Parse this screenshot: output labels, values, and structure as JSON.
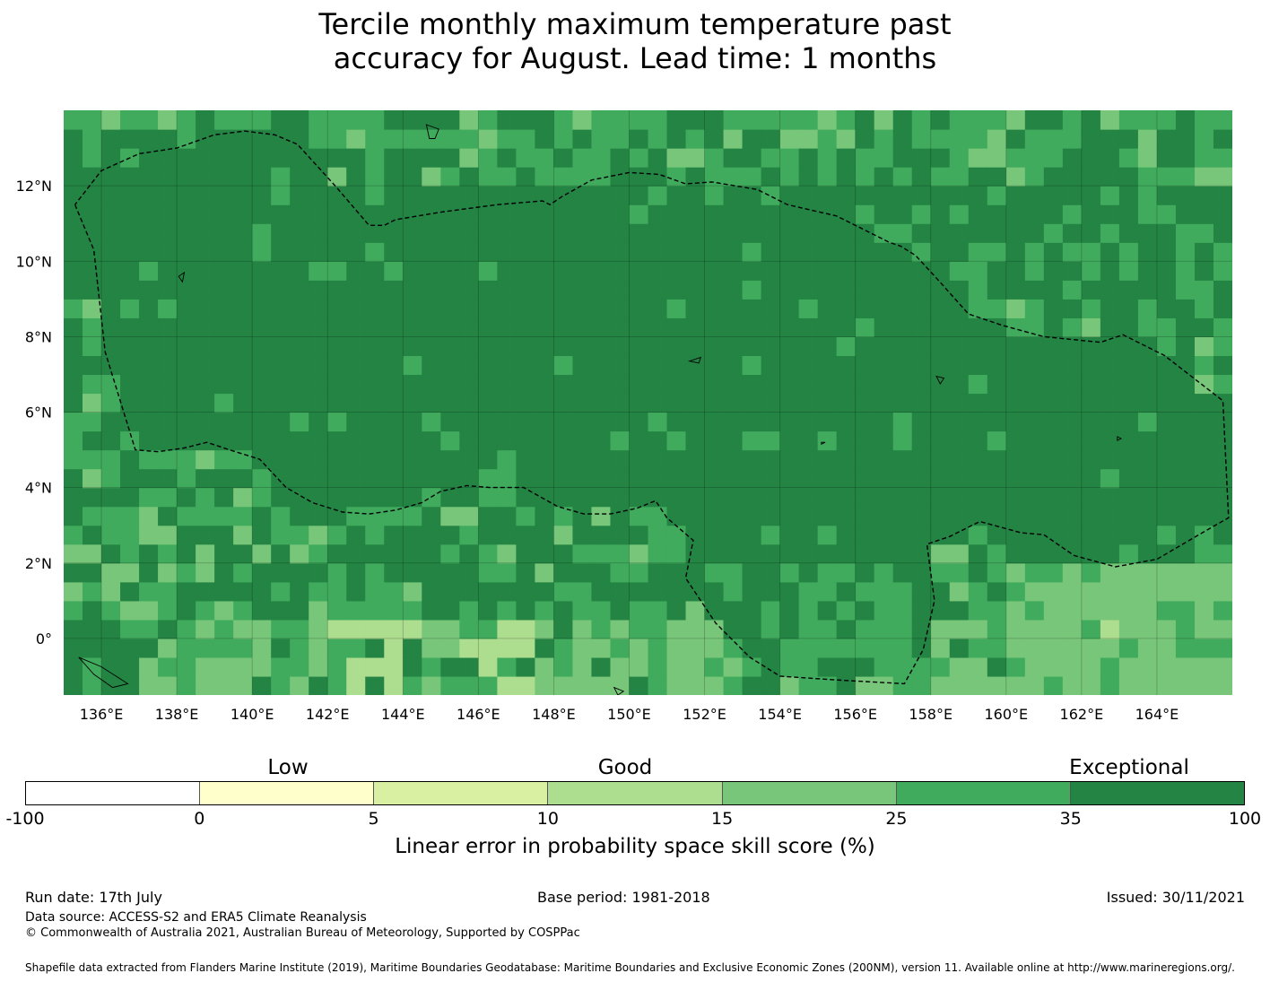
{
  "title": {
    "line1": "Tercile monthly maximum temperature past",
    "line2": "accuracy for August. Lead time: 1 months"
  },
  "map": {
    "lon_range": [
      135,
      166
    ],
    "lat_range": [
      -1.5,
      14
    ],
    "x_ticks": [
      "136°E",
      "138°E",
      "140°E",
      "142°E",
      "144°E",
      "146°E",
      "148°E",
      "150°E",
      "152°E",
      "154°E",
      "156°E",
      "158°E",
      "160°E",
      "162°E",
      "164°E"
    ],
    "y_ticks": [
      "12°N",
      "10°N",
      "8°N",
      "6°N",
      "4°N",
      "2°N",
      "0°"
    ],
    "colors": {
      "exceptional": "#238443",
      "very_good": "#41ab5d",
      "good": "#78c679",
      "fair": "#addd8e",
      "low": "#d9f0a3",
      "lowest": "#ffffcc",
      "none": "#ffffff"
    },
    "eez_boundary": [
      [
        135.3,
        11.5
      ],
      [
        135.8,
        10.3
      ],
      [
        136.1,
        7.6
      ],
      [
        136.9,
        5.0
      ],
      [
        137.5,
        4.95
      ],
      [
        138.2,
        5.05
      ],
      [
        138.8,
        5.2
      ],
      [
        139.4,
        5.0
      ],
      [
        140.2,
        4.75
      ],
      [
        140.9,
        4.0
      ],
      [
        141.6,
        3.6
      ],
      [
        142.4,
        3.35
      ],
      [
        143.1,
        3.3
      ],
      [
        143.8,
        3.4
      ],
      [
        144.5,
        3.6
      ],
      [
        145.0,
        3.9
      ],
      [
        145.7,
        4.05
      ],
      [
        146.3,
        4.0
      ],
      [
        147.2,
        4.0
      ],
      [
        148.1,
        3.5
      ],
      [
        148.8,
        3.3
      ],
      [
        149.5,
        3.3
      ],
      [
        150.2,
        3.45
      ],
      [
        150.7,
        3.65
      ],
      [
        151.0,
        3.2
      ],
      [
        151.7,
        2.6
      ],
      [
        151.5,
        1.6
      ],
      [
        152.3,
        0.4
      ],
      [
        153.2,
        -0.5
      ],
      [
        154.0,
        -1.0
      ],
      [
        155.5,
        -1.1
      ],
      [
        157.3,
        -1.2
      ],
      [
        157.8,
        -0.3
      ],
      [
        158.1,
        1.0
      ],
      [
        157.9,
        2.5
      ],
      [
        158.5,
        2.7
      ],
      [
        159.3,
        3.1
      ],
      [
        160.4,
        2.8
      ],
      [
        161.0,
        2.75
      ],
      [
        161.8,
        2.2
      ],
      [
        162.9,
        1.9
      ],
      [
        164.0,
        2.1
      ],
      [
        165.2,
        2.8
      ],
      [
        165.9,
        3.2
      ],
      [
        165.75,
        6.3
      ],
      [
        164.2,
        7.5
      ],
      [
        163.1,
        8.05
      ],
      [
        162.5,
        7.85
      ],
      [
        161.0,
        8.0
      ],
      [
        159.9,
        8.3
      ],
      [
        159.0,
        8.6
      ],
      [
        158.2,
        9.5
      ],
      [
        157.6,
        10.15
      ],
      [
        157.2,
        10.4
      ],
      [
        156.9,
        10.5
      ],
      [
        156.3,
        10.8
      ],
      [
        155.5,
        11.2
      ],
      [
        154.2,
        11.5
      ],
      [
        153.4,
        11.9
      ],
      [
        152.2,
        12.1
      ],
      [
        151.5,
        12.05
      ],
      [
        150.8,
        12.3
      ],
      [
        150.0,
        12.35
      ],
      [
        149.0,
        12.15
      ],
      [
        148.2,
        11.7
      ],
      [
        147.9,
        11.5
      ],
      [
        147.7,
        11.6
      ],
      [
        146.5,
        11.5
      ],
      [
        145.0,
        11.3
      ],
      [
        143.8,
        11.1
      ],
      [
        143.5,
        10.95
      ],
      [
        143.1,
        10.95
      ],
      [
        142.2,
        12.0
      ],
      [
        141.2,
        13.1
      ],
      [
        140.6,
        13.35
      ],
      [
        139.8,
        13.45
      ],
      [
        139.0,
        13.35
      ],
      [
        138.0,
        13.0
      ],
      [
        137.0,
        12.85
      ],
      [
        136.0,
        12.4
      ],
      [
        135.3,
        11.5
      ]
    ],
    "islands": [
      [
        [
          144.62,
          13.62
        ],
        [
          144.95,
          13.5
        ],
        [
          144.85,
          13.25
        ],
        [
          144.7,
          13.25
        ],
        [
          144.62,
          13.62
        ]
      ],
      [
        [
          138.05,
          9.6
        ],
        [
          138.2,
          9.7
        ],
        [
          138.15,
          9.45
        ],
        [
          138.05,
          9.6
        ]
      ],
      [
        [
          151.6,
          7.35
        ],
        [
          151.9,
          7.45
        ],
        [
          151.85,
          7.3
        ],
        [
          151.6,
          7.35
        ]
      ],
      [
        [
          158.15,
          6.95
        ],
        [
          158.35,
          6.9
        ],
        [
          158.25,
          6.75
        ],
        [
          158.15,
          6.95
        ]
      ],
      [
        [
          162.95,
          5.35
        ],
        [
          163.05,
          5.3
        ],
        [
          162.95,
          5.25
        ],
        [
          162.95,
          5.35
        ]
      ],
      [
        [
          155.1,
          5.2
        ],
        [
          155.2,
          5.2
        ],
        [
          155.1,
          5.15
        ],
        [
          155.1,
          5.2
        ]
      ],
      [
        [
          135.4,
          -0.5
        ],
        [
          136.0,
          -0.75
        ],
        [
          136.7,
          -1.2
        ],
        [
          136.3,
          -1.3
        ],
        [
          135.8,
          -0.95
        ],
        [
          135.4,
          -0.5
        ]
      ],
      [
        [
          149.6,
          -1.3
        ],
        [
          149.85,
          -1.4
        ],
        [
          149.7,
          -1.5
        ],
        [
          149.6,
          -1.3
        ]
      ]
    ]
  },
  "colorbar": {
    "categories": [
      "Low",
      "Good",
      "Exceptional"
    ],
    "boundaries": [
      "-100",
      "0",
      "5",
      "10",
      "15",
      "25",
      "35",
      "100"
    ],
    "colors": [
      "#ffffff",
      "#ffffcc",
      "#d9f0a3",
      "#addd8e",
      "#78c679",
      "#41ab5d",
      "#238443"
    ],
    "label": "Linear error in probability space skill score (%)"
  },
  "footer": {
    "run_date": "Run date: 17th July",
    "base_period": "Base period: 1981-2018",
    "issued": "Issued: 30/11/2021",
    "data_source": "Data source: ACCESS-S2 and ERA5 Climate Reanalysis",
    "copyright": "© Commonwealth of Australia 2021, Australian Bureau of Meteorology, Supported by COSPPac",
    "shapefile": "Shapefile data extracted from Flanders Marine Institute (2019), Maritime Boundaries Geodatabase: Maritime Boundaries and Exclusive Economic Zones (200NM), version 11. Available online at http://www.marineregions.org/."
  }
}
